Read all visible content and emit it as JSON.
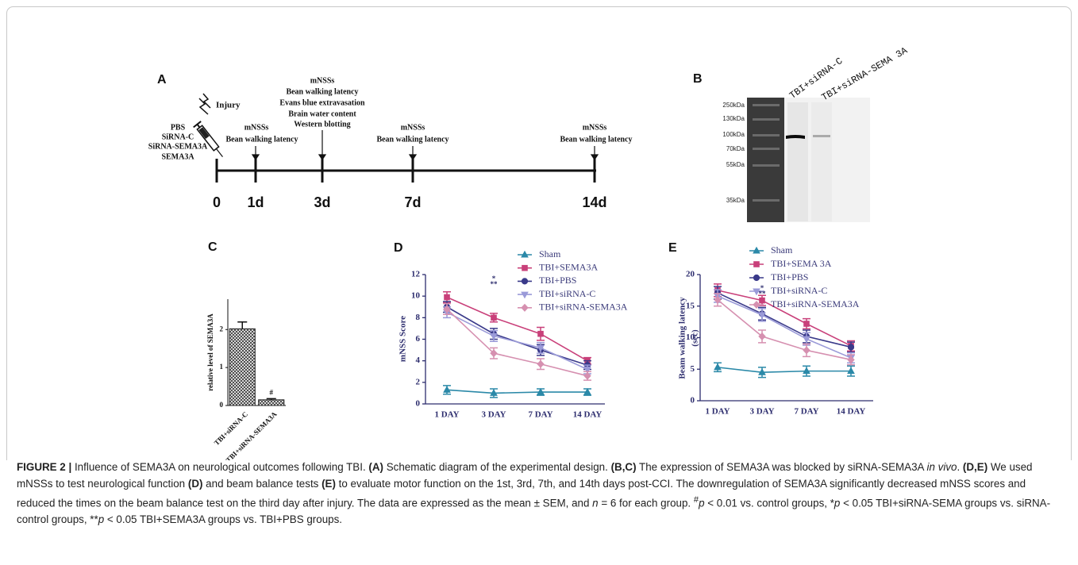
{
  "timeline": {
    "panel": "A",
    "injury": "Injury",
    "treatments": [
      "PBS",
      "SiRNA-C",
      "SiRNA-SEMA3A",
      "SEMA3A"
    ],
    "ticks": [
      "0",
      "1d",
      "3d",
      "7d",
      "14d"
    ],
    "events": [
      [
        "mNSSs",
        "Bean walking latency"
      ],
      [
        "mNSSs",
        "Bean walking latency",
        "Evans blue extravasation",
        "Brain water content",
        "Western blotting"
      ],
      [
        "mNSSs",
        "Bean walking latency"
      ],
      [
        "mNSSs",
        "Bean walking latency"
      ]
    ]
  },
  "blot": {
    "panel": "B",
    "lanes": [
      "TBI+siRNA-C",
      "TBI+siRNA-SEMA 3A"
    ],
    "markers": [
      "250kDa",
      "130kDa",
      "100kDa",
      "70kDa",
      "55kDa",
      "35kDa"
    ]
  },
  "chart_data": [
    {
      "type": "bar",
      "panel": "C",
      "ylabel": "relative level of SEMA3A",
      "categories": [
        "TBI+siRNA-C",
        "TBI+siRNA-SEMA3A"
      ],
      "values": [
        2.02,
        0.15
      ],
      "errors": [
        0.18,
        0.03
      ],
      "color": "#666666",
      "ylim": [
        0,
        2.8
      ],
      "yticks": [
        0,
        1,
        2
      ],
      "annotations": [
        "#"
      ]
    },
    {
      "type": "line",
      "panel": "D",
      "ylabel": [
        "mNSS Score"
      ],
      "categories": [
        "1 DAY",
        "3 DAY",
        "7 DAY",
        "14 DAY"
      ],
      "ylim": [
        0,
        12
      ],
      "yticks": [
        0,
        2,
        4,
        6,
        8,
        10,
        12
      ],
      "annotations": [
        "*",
        "**"
      ],
      "series": [
        {
          "name": "Sham",
          "color": "#2b89a8",
          "marker": "triangle",
          "values": [
            1.3,
            1.0,
            1.1,
            1.1
          ],
          "errors": [
            0.4,
            0.4,
            0.3,
            0.3
          ]
        },
        {
          "name": "TBI+SEMA3A",
          "color": "#c9407a",
          "marker": "square",
          "values": [
            9.9,
            8.0,
            6.5,
            4.0
          ],
          "errors": [
            0.5,
            0.4,
            0.6,
            0.3
          ]
        },
        {
          "name": "TBI+PBS",
          "color": "#3a3a8a",
          "marker": "circle",
          "values": [
            9.0,
            6.5,
            5.0,
            3.6
          ],
          "errors": [
            0.5,
            0.5,
            0.5,
            0.4
          ]
        },
        {
          "name": "TBI+siRNA-C",
          "color": "#9a9ad8",
          "marker": "triangle-down",
          "values": [
            8.5,
            6.3,
            5.2,
            3.2
          ],
          "errors": [
            0.5,
            0.5,
            0.5,
            0.4
          ]
        },
        {
          "name": "TBI+siRNA-SEMA3A",
          "color": "#d690b0",
          "marker": "diamond",
          "values": [
            8.8,
            4.7,
            3.7,
            2.6
          ],
          "errors": [
            0.5,
            0.5,
            0.5,
            0.4
          ]
        }
      ]
    },
    {
      "type": "line",
      "panel": "E",
      "ylabel": [
        "Beam walking latency",
        "(sec)"
      ],
      "categories": [
        "1 DAY",
        "3 DAY",
        "7 DAY",
        "14 DAY"
      ],
      "ylim": [
        0,
        20
      ],
      "yticks": [
        0,
        5,
        10,
        15,
        20
      ],
      "annotations": [
        "*",
        "**"
      ],
      "series": [
        {
          "name": "Sham",
          "color": "#2b89a8",
          "marker": "triangle",
          "values": [
            5.3,
            4.5,
            4.7,
            4.7
          ],
          "errors": [
            0.7,
            0.8,
            0.8,
            0.8
          ]
        },
        {
          "name": "TBI+SEMA 3A",
          "color": "#c9407a",
          "marker": "square",
          "values": [
            17.5,
            15.9,
            12.2,
            8.7
          ],
          "errors": [
            1.0,
            0.8,
            0.8,
            0.8
          ]
        },
        {
          "name": "TBI+PBS",
          "color": "#3a3a8a",
          "marker": "circle",
          "values": [
            17.1,
            13.8,
            10.2,
            8.5
          ],
          "errors": [
            1.0,
            1.0,
            1.0,
            0.8
          ]
        },
        {
          "name": "TBI+siRNA-C",
          "color": "#9a9ad8",
          "marker": "triangle-down",
          "values": [
            16.6,
            13.6,
            9.8,
            6.8
          ],
          "errors": [
            1.0,
            1.0,
            1.0,
            0.8
          ]
        },
        {
          "name": "TBI+siRNA-SEMA3A",
          "color": "#d690b0",
          "marker": "diamond",
          "values": [
            16.0,
            10.2,
            8.0,
            6.5
          ],
          "errors": [
            1.0,
            1.0,
            1.0,
            0.8
          ]
        }
      ]
    }
  ],
  "caption": [
    "FIGURE 2 |",
    " Influence of SEMA3A on neurological outcomes following TBI. ",
    "(A)",
    " Schematic diagram of the experimental design. ",
    "(B,C)",
    " The expression of SEMA3A was blocked by siRNA-SEMA3A ",
    "in vivo",
    ". ",
    "(D,E)",
    " We used mNSSs to test neurological function ",
    "(D)",
    " and beam balance tests ",
    "(E)",
    " to evaluate motor function on the 1st, 3rd, 7th, and 14th days post-CCI. The downregulation of SEMA3A significantly decreased mNSS scores and reduced the times on the beam balance test on the third day after injury. The data are expressed as the mean ± SEM, and ",
    "n",
    " = 6 for each group. ",
    "#",
    "p",
    " < 0.01 vs. control groups, *",
    "p",
    " < 0.05 TBI+siRNA-SEMA groups vs. siRNA-control groups, **",
    "p",
    " < 0.05 TBI+SEMA3A groups vs. TBI+PBS groups."
  ]
}
